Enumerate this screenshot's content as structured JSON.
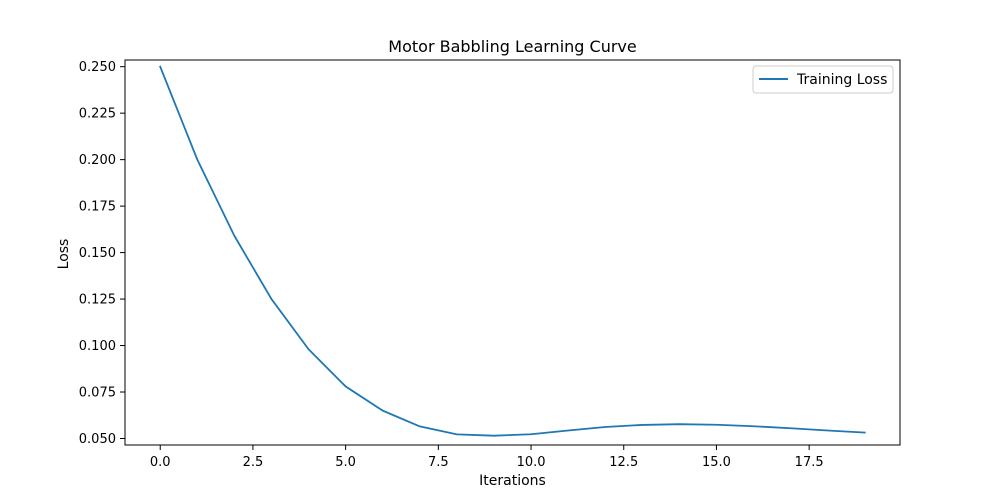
{
  "chart_data": {
    "type": "line",
    "title": "Motor Babbling Learning Curve",
    "xlabel": "Iterations",
    "ylabel": "Loss",
    "xlim": [
      -0.95,
      19.95
    ],
    "ylim": [
      0.0465,
      0.2536
    ],
    "x_ticks": [
      0.0,
      2.5,
      5.0,
      7.5,
      10.0,
      12.5,
      15.0,
      17.5
    ],
    "x_tick_labels": [
      "0.0",
      "2.5",
      "5.0",
      "7.5",
      "10.0",
      "12.5",
      "15.0",
      "17.5"
    ],
    "y_ticks": [
      0.05,
      0.075,
      0.1,
      0.125,
      0.15,
      0.175,
      0.2,
      0.225,
      0.25
    ],
    "y_tick_labels": [
      "0.050",
      "0.075",
      "0.100",
      "0.125",
      "0.150",
      "0.175",
      "0.200",
      "0.225",
      "0.250"
    ],
    "grid": false,
    "legend_position": "top-right",
    "series": [
      {
        "name": "Training Loss",
        "color": "#1f77b4",
        "x": [
          0,
          1,
          2,
          3,
          4,
          5,
          6,
          7,
          8,
          9,
          10,
          11,
          12,
          13,
          14,
          15,
          16,
          17,
          18,
          19
        ],
        "y": [
          0.25,
          0.2,
          0.159,
          0.125,
          0.098,
          0.078,
          0.065,
          0.0565,
          0.0522,
          0.0515,
          0.0523,
          0.0543,
          0.0562,
          0.0573,
          0.0577,
          0.0574,
          0.0566,
          0.0555,
          0.0543,
          0.0532
        ]
      }
    ]
  }
}
